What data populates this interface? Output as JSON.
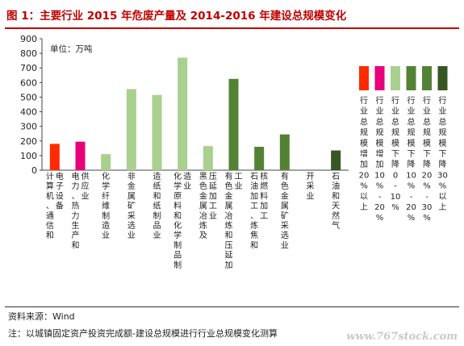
{
  "title": "图 1：主要行业 2015 年危废产量及 2014-2016 年建设总规模变化",
  "source": "资料来源：Wind",
  "note": "注：以城镇固定资产投资完成额-建设总规模进行行业总规模变化测算",
  "watermark": "www.767stock.com",
  "unit": "单位：万吨",
  "chart_data": {
    "type": "bar",
    "ylim": [
      0,
      900
    ],
    "yticks": [
      0,
      100,
      200,
      300,
      400,
      500,
      600,
      700,
      800,
      900
    ],
    "categories": [
      "计算机、通信和电子设备",
      "电力、热力生产和供应业",
      "化学纤维制造业",
      "非金属矿采选业",
      "造纸和纸制品业",
      "化学原料和化学制品制造业",
      "黑色金属冶炼及压延加工业",
      "有色金属冶炼和压延加工业",
      "石油加工、炼焦和核燃料加工",
      "有色金属矿采选业",
      "开采业",
      "石油和天然气"
    ],
    "tick_labels": [
      [
        "计算机、通信和",
        "电子设备"
      ],
      [
        "电力、热力生产和",
        "供应业"
      ],
      [
        "化学纤维制造业"
      ],
      [
        "非金属矿采选业"
      ],
      [
        "造纸和纸制品业"
      ],
      [
        "化学原料和化学制品制",
        "造业"
      ],
      [
        "黑色金属冶炼及",
        "压延加工业"
      ],
      [
        "有色金属冶炼和压延加",
        "工业"
      ],
      [
        "石油加工、炼焦和",
        "核燃料加工"
      ],
      [
        "有色金属矿采选业"
      ],
      [
        "开采业"
      ],
      [
        "石油和天然气"
      ]
    ],
    "values": [
      180,
      195,
      110,
      555,
      515,
      770,
      165,
      625,
      160,
      245,
      0,
      135
    ],
    "bar_colors": [
      "#ff2a00",
      "#e8007a",
      "#a9d08e",
      "#a9d08e",
      "#a9d08e",
      "#a9d08e",
      "#a9d08e",
      "#548235",
      "#548235",
      "#548235",
      "#548235",
      "#375623"
    ],
    "legend": [
      {
        "label": "行业总规模增加20%以上",
        "color": "#ff2a00"
      },
      {
        "label": "行业总规模增加10%-20%",
        "color": "#e8007a"
      },
      {
        "label": "行业总规模下降0-10%",
        "color": "#a9d08e"
      },
      {
        "label": "行业总规模下降10%-20%",
        "color": "#548235"
      },
      {
        "label": "行业总规模下降20%-30%",
        "color": "#548235"
      },
      {
        "label": "行业总规模下降30%以上",
        "color": "#375623"
      }
    ]
  }
}
